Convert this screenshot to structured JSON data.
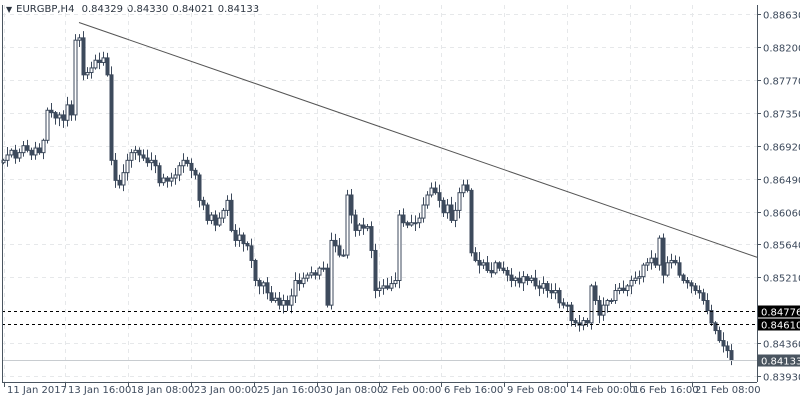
{
  "header": {
    "symbol": "EURGBP,H4",
    "open": "0.84329",
    "high": "0.84330",
    "low": "0.84021",
    "close": "0.84133"
  },
  "colors": {
    "candle": "#3d4a5c",
    "bull_fill": "#ffffff",
    "grid": "#e6e8ea",
    "axis": "#4a5560",
    "level_badge": "#000000",
    "price_badge": "#4a5560",
    "trendline": "#555555"
  },
  "chart_data": {
    "type": "candlestick",
    "title": "EURGBP,H4",
    "timeframe": "H4",
    "ylim": [
      0.8393,
      0.8863
    ],
    "grid": true,
    "y_ticks": [
      "0.88630",
      "0.88200",
      "0.87770",
      "0.87350",
      "0.86920",
      "0.86490",
      "0.86060",
      "0.85640",
      "0.85210",
      "0.84360",
      "0.83930"
    ],
    "x_ticks": [
      "11 Jan 2017",
      "13 Jan 16:00",
      "18 Jan 08:00",
      "23 Jan 00:00",
      "25 Jan 16:00",
      "30 Jan 08:00",
      "2 Feb 00:00",
      "6 Feb 16:00",
      "9 Feb 08:00",
      "14 Feb 00:00",
      "16 Feb 16:00",
      "21 Feb 08:00"
    ],
    "first_open": 0.867,
    "closes": [
      0.8673,
      0.868,
      0.8686,
      0.8676,
      0.8683,
      0.8692,
      0.8686,
      0.868,
      0.8689,
      0.8683,
      0.8699,
      0.8738,
      0.8735,
      0.8728,
      0.8732,
      0.8725,
      0.8745,
      0.8732,
      0.8829,
      0.8832,
      0.8784,
      0.8787,
      0.8793,
      0.8803,
      0.88,
      0.8806,
      0.8784,
      0.8673,
      0.8647,
      0.8641,
      0.8657,
      0.8673,
      0.8683,
      0.8686,
      0.868,
      0.8676,
      0.867,
      0.8673,
      0.8666,
      0.8644,
      0.865,
      0.8646,
      0.865,
      0.8654,
      0.8666,
      0.8673,
      0.8669,
      0.866,
      0.8654,
      0.8621,
      0.8615,
      0.8595,
      0.8602,
      0.8589,
      0.8598,
      0.8608,
      0.8621,
      0.8582,
      0.8569,
      0.8576,
      0.8565,
      0.8562,
      0.8543,
      0.8517,
      0.851,
      0.8514,
      0.8501,
      0.8491,
      0.8494,
      0.8485,
      0.8491,
      0.8485,
      0.8497,
      0.8517,
      0.8513,
      0.852,
      0.8524,
      0.8527,
      0.8524,
      0.8533,
      0.8533,
      0.8485,
      0.8569,
      0.8562,
      0.855,
      0.855,
      0.8628,
      0.8602,
      0.8582,
      0.8589,
      0.8585,
      0.8587,
      0.8556,
      0.8504,
      0.8507,
      0.851,
      0.8507,
      0.8513,
      0.8517,
      0.8602,
      0.8592,
      0.8589,
      0.8592,
      0.8592,
      0.8598,
      0.8615,
      0.8628,
      0.8637,
      0.8631,
      0.8621,
      0.8605,
      0.8615,
      0.8595,
      0.8608,
      0.8631,
      0.8641,
      0.8634,
      0.8553,
      0.8543,
      0.8537,
      0.854,
      0.853,
      0.8527,
      0.854,
      0.8533,
      0.853,
      0.8524,
      0.8517,
      0.852,
      0.8514,
      0.8522,
      0.8517,
      0.852,
      0.851,
      0.8507,
      0.8513,
      0.8504,
      0.8501,
      0.8504,
      0.8488,
      0.8485,
      0.8485,
      0.8465,
      0.8462,
      0.8459,
      0.8465,
      0.8462,
      0.851,
      0.8491,
      0.8472,
      0.8485,
      0.8491,
      0.8491,
      0.8504,
      0.8507,
      0.8504,
      0.851,
      0.8517,
      0.852,
      0.8522,
      0.8537,
      0.854,
      0.8546,
      0.8537,
      0.8572,
      0.8524,
      0.854,
      0.8543,
      0.854,
      0.8524,
      0.8517,
      0.8514,
      0.851,
      0.8504,
      0.8501,
      0.8491,
      0.8478,
      0.8462,
      0.8452,
      0.8439,
      0.8432,
      0.8426,
      0.84133
    ],
    "trendline": {
      "start_bar": 19,
      "start_price": 0.8852,
      "end_bar": 163,
      "end_price": 0.8593
    },
    "horizontal_levels": [
      {
        "price": 0.84776,
        "label": "0.84776"
      },
      {
        "price": 0.8461,
        "label": "0.84610"
      }
    ],
    "current_price": {
      "price": 0.84133,
      "label": "0.84133"
    }
  }
}
